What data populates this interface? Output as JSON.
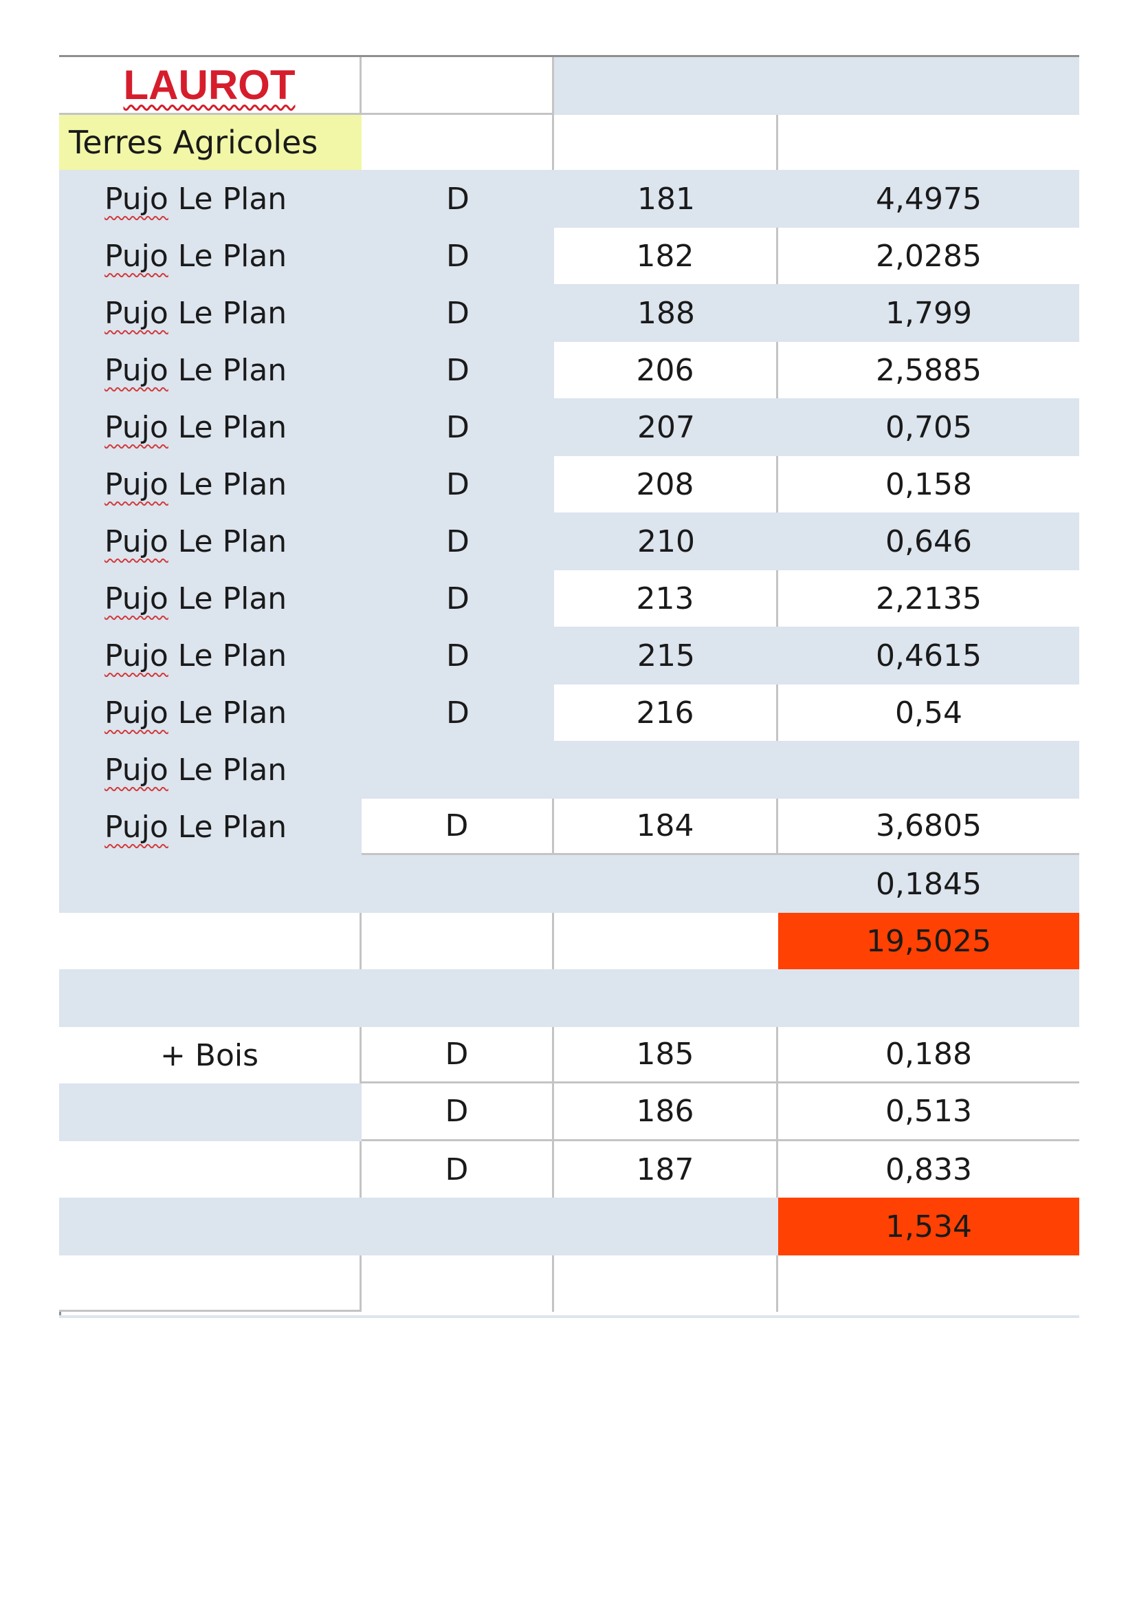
{
  "title": "LAUROT",
  "section_label": "Terres Agricoles",
  "terres_rows": [
    {
      "lieu": "Pujo Le Plan",
      "section": "D",
      "numero": "181",
      "surface": "4,4975"
    },
    {
      "lieu": "Pujo Le Plan",
      "section": "D",
      "numero": "182",
      "surface": "2,0285"
    },
    {
      "lieu": "Pujo Le Plan",
      "section": "D",
      "numero": "188",
      "surface": "1,799"
    },
    {
      "lieu": "Pujo Le Plan",
      "section": "D",
      "numero": "206",
      "surface": "2,5885"
    },
    {
      "lieu": "Pujo Le Plan",
      "section": "D",
      "numero": "207",
      "surface": "0,705"
    },
    {
      "lieu": "Pujo Le Plan",
      "section": "D",
      "numero": "208",
      "surface": "0,158"
    },
    {
      "lieu": "Pujo Le Plan",
      "section": "D",
      "numero": "210",
      "surface": "0,646"
    },
    {
      "lieu": "Pujo Le Plan",
      "section": "D",
      "numero": "213",
      "surface": "2,2135"
    },
    {
      "lieu": "Pujo Le Plan",
      "section": "D",
      "numero": "215",
      "surface": "0,4615"
    },
    {
      "lieu": "Pujo Le Plan",
      "section": "D",
      "numero": "216",
      "surface": "0,54"
    },
    {
      "lieu": "Pujo Le Plan",
      "section": "",
      "numero": "",
      "surface": ""
    },
    {
      "lieu": "Pujo Le Plan",
      "section": "D",
      "numero": "184",
      "surface": "3,6805"
    },
    {
      "lieu": "",
      "section": "",
      "numero": "",
      "surface": "0,1845"
    }
  ],
  "terres_total": "19,5025",
  "bois_label": "+ Bois",
  "bois_rows": [
    {
      "section": "D",
      "numero": "185",
      "surface": "0,188"
    },
    {
      "section": "D",
      "numero": "186",
      "surface": "0,513"
    },
    {
      "section": "D",
      "numero": "187",
      "surface": "0,833"
    }
  ],
  "bois_total": "1,534",
  "colors": {
    "band": "#dce4ee",
    "total_highlight": "#ff4103",
    "section_label_bg": "#f1f7a6",
    "title": "#d61d2c"
  }
}
